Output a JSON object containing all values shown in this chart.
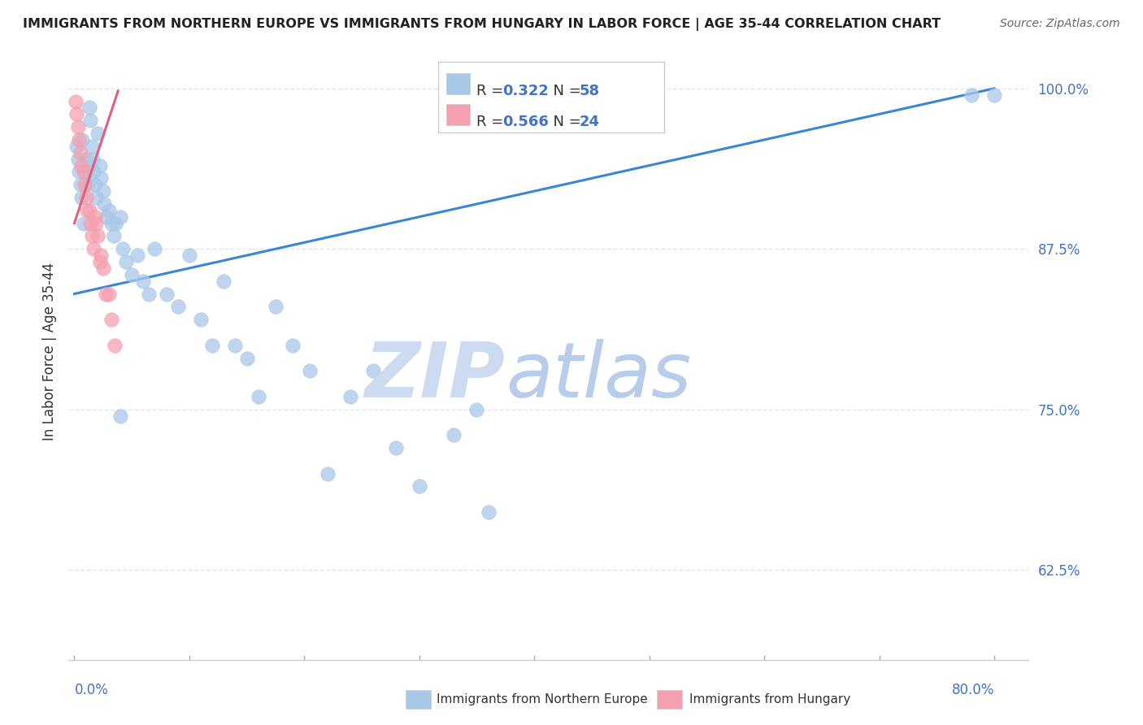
{
  "title": "IMMIGRANTS FROM NORTHERN EUROPE VS IMMIGRANTS FROM HUNGARY IN LABOR FORCE | AGE 35-44 CORRELATION CHART",
  "source": "Source: ZipAtlas.com",
  "ylabel": "In Labor Force | Age 35-44",
  "y_tick_positions": [
    0.625,
    0.75,
    0.875,
    1.0
  ],
  "y_tick_labels": [
    "62.5%",
    "75.0%",
    "87.5%",
    "100.0%"
  ],
  "y_min": 0.555,
  "y_max": 1.035,
  "x_min": -0.005,
  "x_max": 0.83,
  "blue_R": 0.322,
  "blue_N": 58,
  "pink_R": 0.566,
  "pink_N": 24,
  "blue_color": "#a8c8e8",
  "pink_color": "#f4a0b0",
  "blue_line_color": "#3a86d4",
  "pink_line_color": "#e06080",
  "legend_label_blue": "Immigrants from Northern Europe",
  "legend_label_pink": "Immigrants from Hungary",
  "blue_scatter_x": [
    0.002,
    0.003,
    0.004,
    0.005,
    0.006,
    0.007,
    0.008,
    0.01,
    0.011,
    0.012,
    0.013,
    0.014,
    0.015,
    0.016,
    0.017,
    0.018,
    0.019,
    0.02,
    0.022,
    0.023,
    0.025,
    0.026,
    0.028,
    0.03,
    0.032,
    0.034,
    0.036,
    0.04,
    0.042,
    0.045,
    0.05,
    0.055,
    0.06,
    0.065,
    0.07,
    0.08,
    0.09,
    0.1,
    0.11,
    0.12,
    0.13,
    0.14,
    0.15,
    0.16,
    0.175,
    0.19,
    0.205,
    0.22,
    0.24,
    0.26,
    0.28,
    0.3,
    0.33,
    0.36,
    0.04,
    0.35,
    0.78,
    0.8
  ],
  "blue_scatter_y": [
    0.955,
    0.945,
    0.935,
    0.925,
    0.915,
    0.96,
    0.895,
    0.945,
    0.935,
    0.925,
    0.985,
    0.975,
    0.955,
    0.945,
    0.935,
    0.925,
    0.915,
    0.965,
    0.94,
    0.93,
    0.92,
    0.91,
    0.9,
    0.905,
    0.895,
    0.885,
    0.895,
    0.9,
    0.875,
    0.865,
    0.855,
    0.87,
    0.85,
    0.84,
    0.875,
    0.84,
    0.83,
    0.87,
    0.82,
    0.8,
    0.85,
    0.8,
    0.79,
    0.76,
    0.83,
    0.8,
    0.78,
    0.7,
    0.76,
    0.78,
    0.72,
    0.69,
    0.73,
    0.67,
    0.745,
    0.75,
    0.995,
    0.995
  ],
  "pink_scatter_x": [
    0.001,
    0.002,
    0.003,
    0.004,
    0.005,
    0.006,
    0.008,
    0.009,
    0.01,
    0.011,
    0.013,
    0.014,
    0.015,
    0.017,
    0.018,
    0.019,
    0.02,
    0.022,
    0.023,
    0.025,
    0.027,
    0.03,
    0.032,
    0.035
  ],
  "pink_scatter_y": [
    0.99,
    0.98,
    0.97,
    0.96,
    0.95,
    0.94,
    0.935,
    0.925,
    0.915,
    0.905,
    0.905,
    0.895,
    0.885,
    0.875,
    0.9,
    0.895,
    0.885,
    0.865,
    0.87,
    0.86,
    0.84,
    0.84,
    0.82,
    0.8
  ],
  "blue_trend_x": [
    0.0,
    0.8
  ],
  "blue_trend_y": [
    0.84,
    1.0
  ],
  "pink_trend_x": [
    0.0,
    0.038
  ],
  "pink_trend_y": [
    0.895,
    0.998
  ],
  "watermark_zip_color": "#c8d8f0",
  "watermark_atlas_color": "#b0c8e8",
  "background_color": "#ffffff",
  "grid_color": "#e0e8f0",
  "title_fontsize": 11.5,
  "source_fontsize": 10,
  "tick_fontsize": 12,
  "ylabel_fontsize": 12
}
